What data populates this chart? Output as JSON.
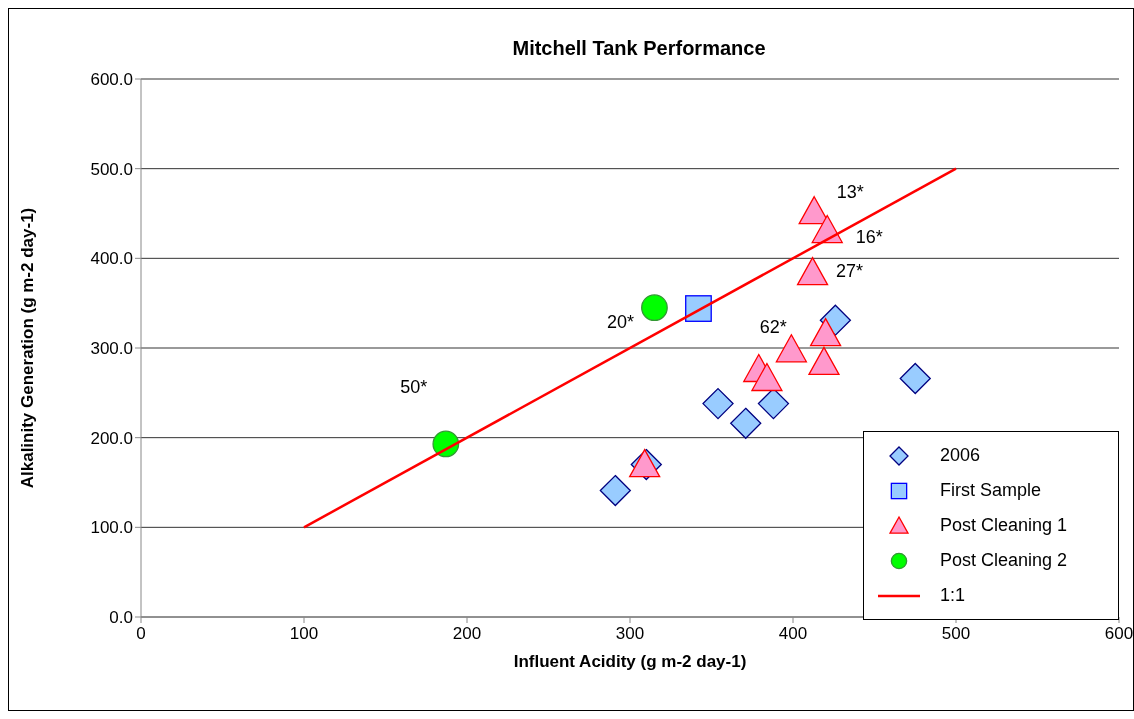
{
  "chart_data": {
    "type": "scatter",
    "title": "Mitchell Tank Performance",
    "xlabel": "Influent Acidity (g m-2 day-1)",
    "ylabel": "Alkalinity Generation (g m-2 day-1)",
    "xlim": [
      0,
      600
    ],
    "xticks": [
      0,
      100,
      200,
      300,
      400,
      500,
      600
    ],
    "ylim": [
      0,
      600
    ],
    "yticks": [
      {
        "value": 0,
        "label": "0.0"
      },
      {
        "value": 100,
        "label": "100.0"
      },
      {
        "value": 200,
        "label": "200.0"
      },
      {
        "value": 300,
        "label": "300.0"
      },
      {
        "value": 400,
        "label": "400.0"
      },
      {
        "value": 500,
        "label": "500.0"
      },
      {
        "value": 600,
        "label": "600.0"
      }
    ],
    "grid": "y",
    "legend": "bottom right",
    "series": [
      {
        "name": "2006",
        "type": "scatter",
        "marker": "diamond",
        "color": "#99ccff",
        "x": [
          291,
          310,
          354,
          371,
          388,
          426,
          475
        ],
        "values": [
          141,
          170,
          238,
          216,
          238,
          331,
          266
        ]
      },
      {
        "name": "First Sample",
        "type": "scatter",
        "marker": "square",
        "color": "#99ccff",
        "x": [
          342
        ],
        "values": [
          344
        ]
      },
      {
        "name": "Post Cleaning 1",
        "type": "scatter",
        "marker": "triangle",
        "color": "#ff99cc",
        "x": [
          413,
          421,
          412,
          399,
          379,
          384,
          420,
          419,
          309
        ],
        "values": [
          452,
          431,
          384,
          298,
          276,
          266,
          316,
          284,
          170
        ]
      },
      {
        "name": "Post Cleaning 2",
        "type": "scatter",
        "marker": "circle",
        "color": "#00ff00",
        "x": [
          315,
          187
        ],
        "values": [
          345,
          193
        ]
      },
      {
        "name": "1:1",
        "type": "line",
        "marker": "none",
        "color": "#ff0000",
        "x": [
          100,
          500
        ],
        "values": [
          100,
          500
        ]
      }
    ],
    "annotations": [
      {
        "text": "13*",
        "x": 413,
        "y": 452
      },
      {
        "text": "16*",
        "x": 421,
        "y": 431
      },
      {
        "text": "27*",
        "x": 412,
        "y": 384
      },
      {
        "text": "62*",
        "x": 399,
        "y": 298
      },
      {
        "text": "20*",
        "x": 315,
        "y": 345
      },
      {
        "text": "50*",
        "x": 187,
        "y": 193
      }
    ]
  }
}
